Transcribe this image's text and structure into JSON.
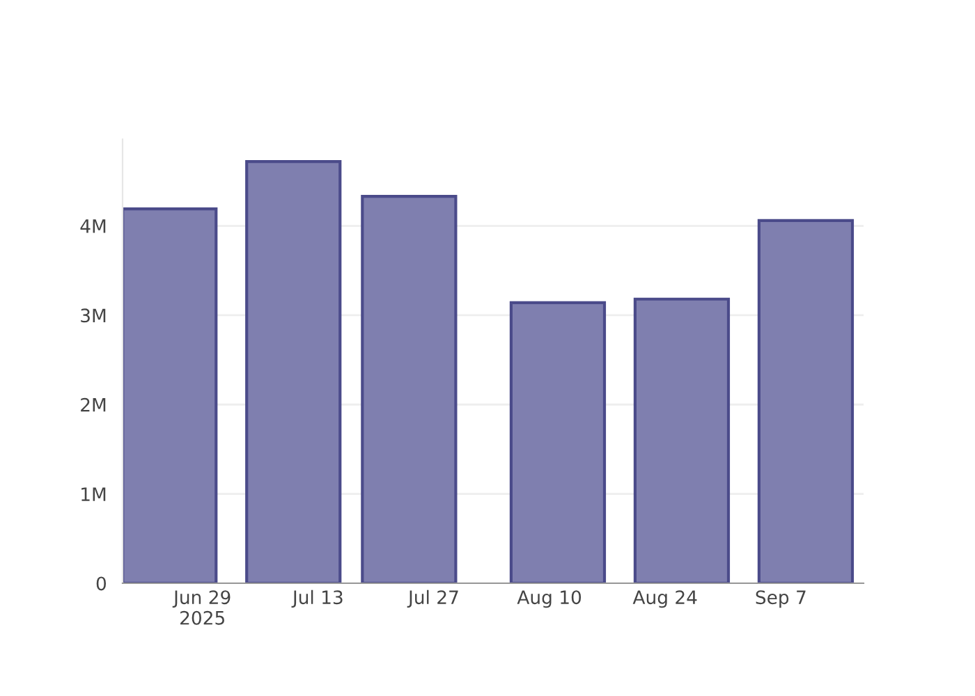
{
  "chart_data": {
    "type": "bar",
    "x": [
      "2025-06-25",
      "2025-07-10",
      "2025-07-24",
      "2025-08-11",
      "2025-08-26",
      "2025-09-10"
    ],
    "values": [
      4190000,
      4720000,
      4330000,
      3140000,
      3180000,
      4060000
    ],
    "color": "#7f7faf",
    "xlim": [
      "2025-06-19T08:00",
      "2025-09-17"
    ],
    "xticks": [
      {
        "value": "2025-06-29",
        "label": "Jun 29\n2025"
      },
      {
        "value": "2025-07-13",
        "label": "Jul 13"
      },
      {
        "value": "2025-07-27",
        "label": "Jul 27"
      },
      {
        "value": "2025-08-10",
        "label": "Aug 10"
      },
      {
        "value": "2025-08-24",
        "label": "Aug 24"
      },
      {
        "value": "2025-09-07",
        "label": "Sep 7"
      }
    ],
    "ylim": [
      0,
      4970000
    ],
    "yticks": [
      0,
      {
        "value": 1000000,
        "label": "1M"
      },
      {
        "value": 2000000,
        "label": "2M"
      },
      {
        "value": 3000000,
        "label": "3M"
      },
      {
        "value": 4000000,
        "label": "4M"
      }
    ],
    "grid": "y",
    "legend": false
  }
}
